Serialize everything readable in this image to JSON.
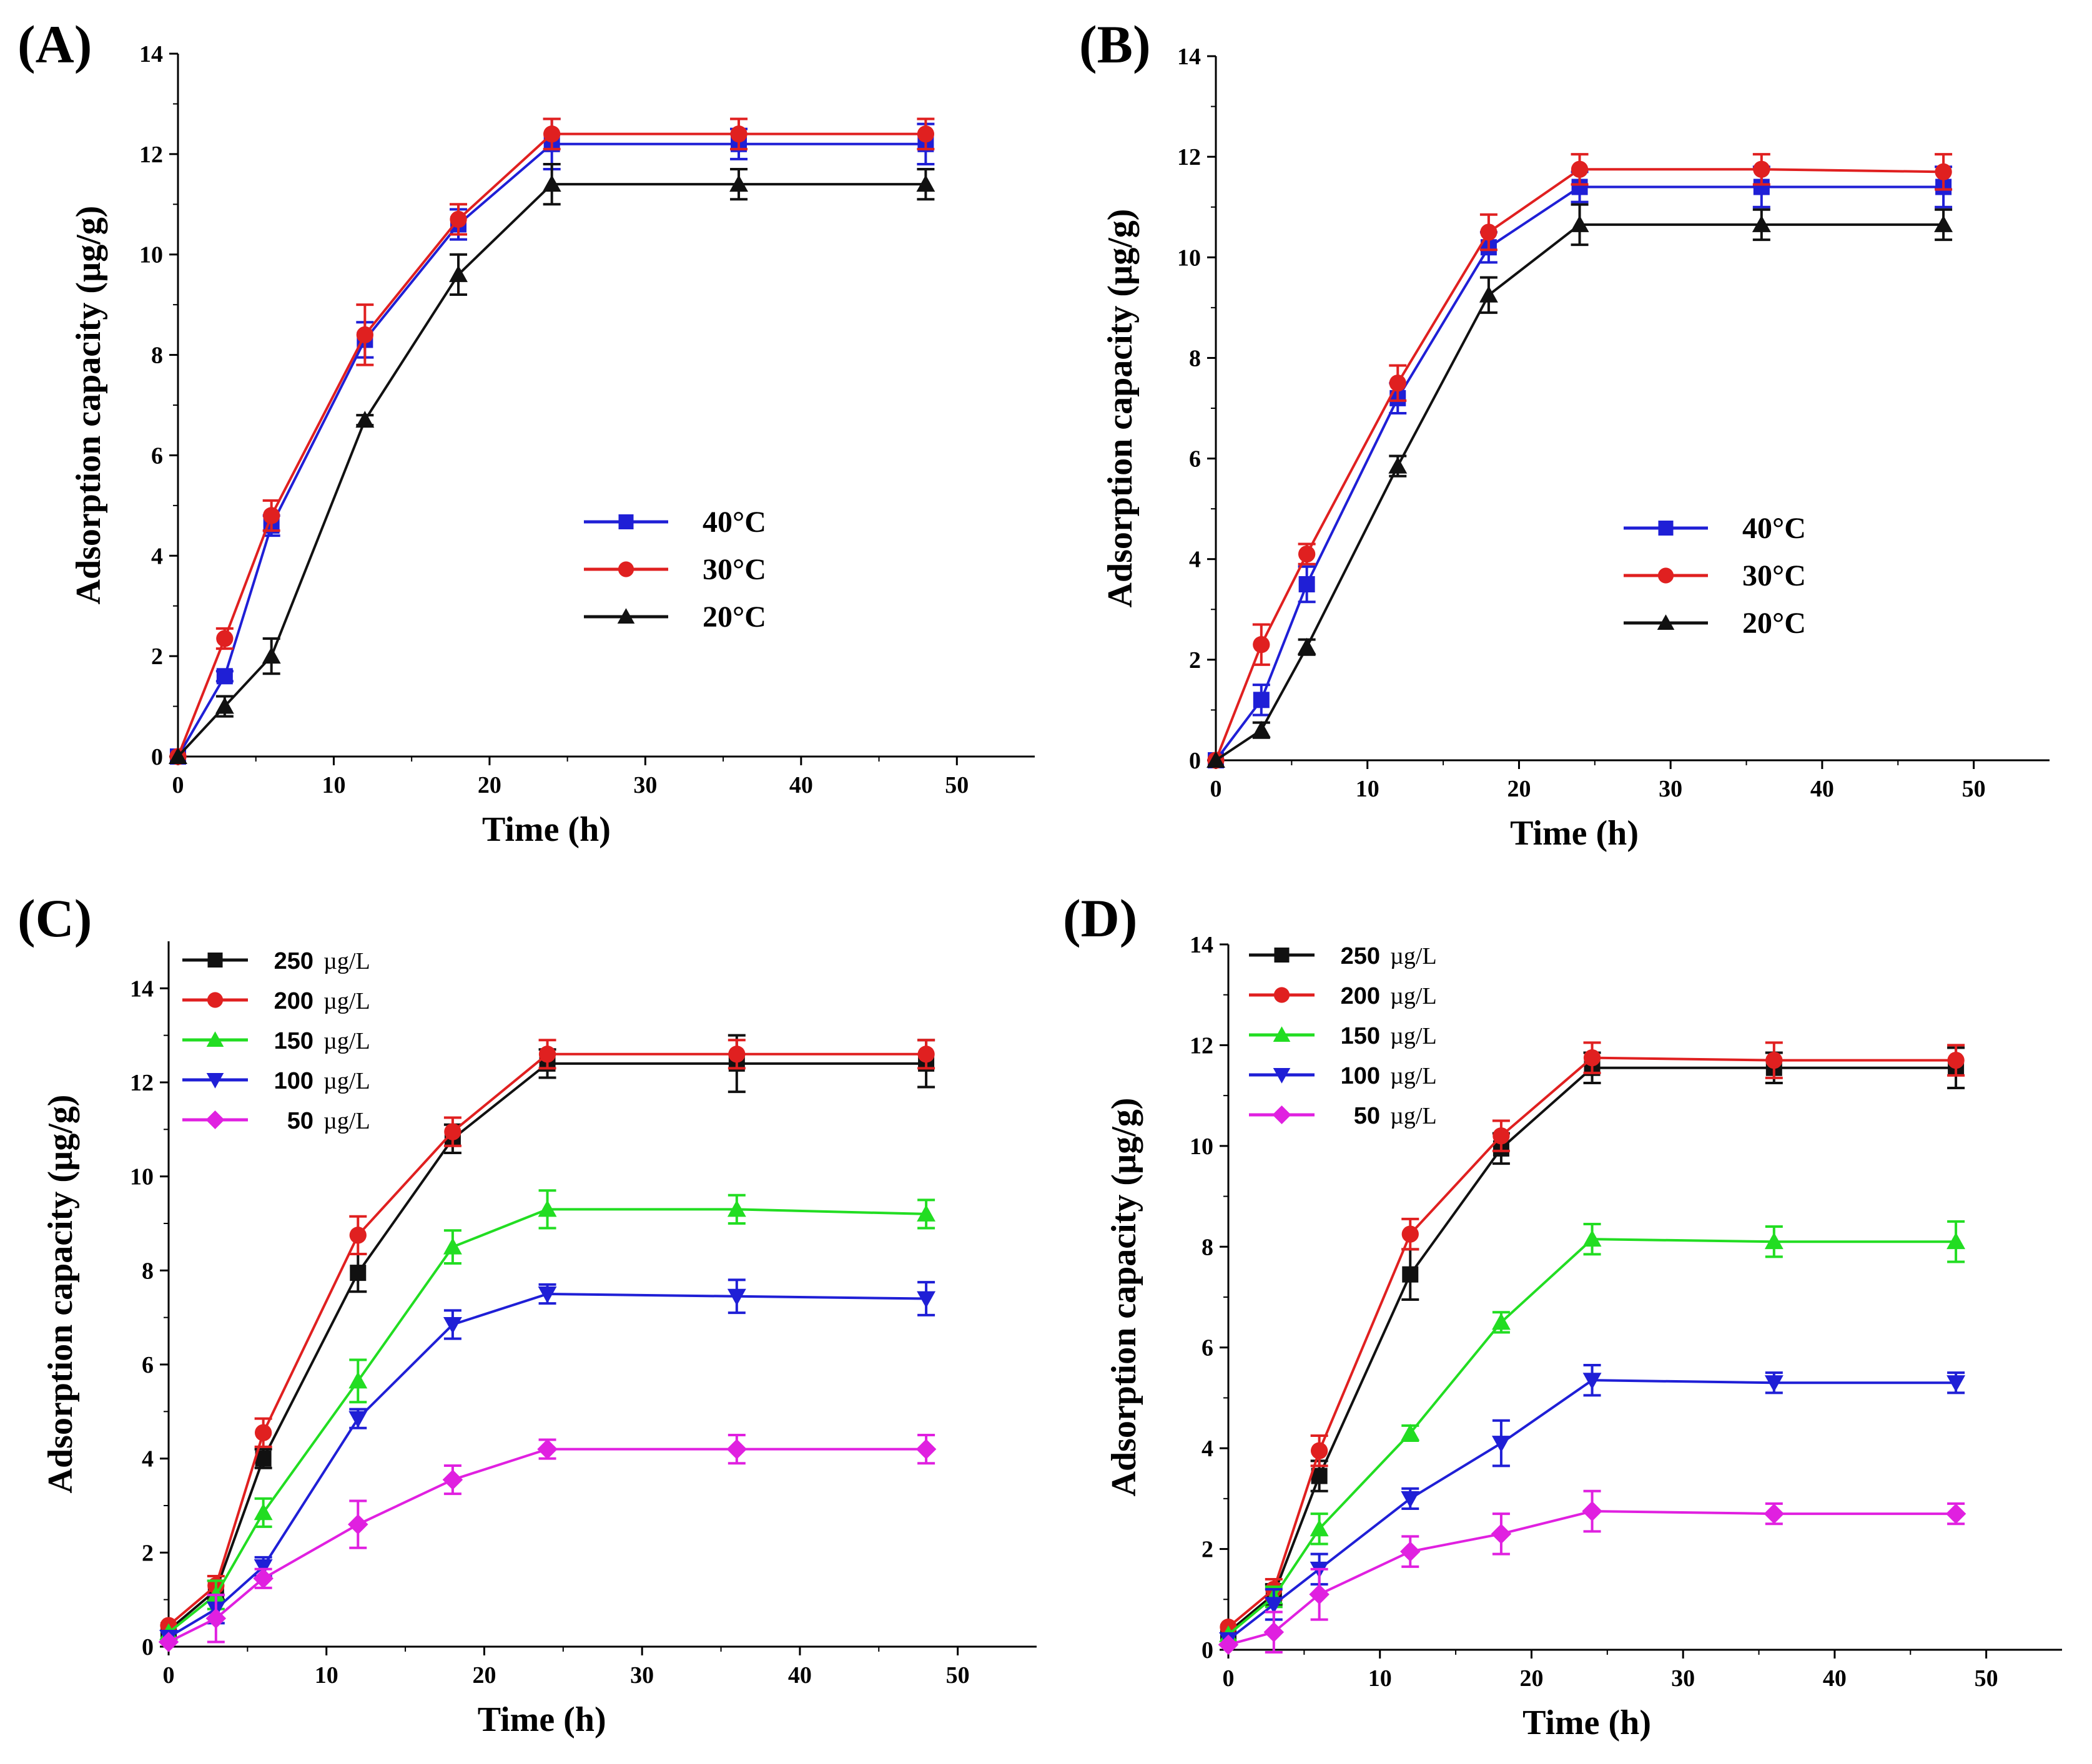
{
  "figure": {
    "panels": [
      {
        "id": "A",
        "label": "(A)"
      },
      {
        "id": "B",
        "label": "(B)"
      },
      {
        "id": "C",
        "label": "(C)"
      },
      {
        "id": "D",
        "label": "(D)"
      }
    ]
  },
  "chart_data": [
    {
      "panel": "(A)",
      "type": "line",
      "xlabel": "Time (h)",
      "ylabel": "Adsorption capacity (µg/g)",
      "xlim": [
        0,
        55
      ],
      "ylim": [
        0,
        14
      ],
      "xticks": [
        0,
        10,
        20,
        30,
        40,
        50
      ],
      "yticks": [
        0,
        2,
        4,
        6,
        8,
        10,
        12,
        14
      ],
      "legend_position": "center-right",
      "x": [
        0,
        3,
        6,
        12,
        18,
        24,
        36,
        48
      ],
      "series": [
        {
          "name": "40°C",
          "color": "#1f1fd6",
          "marker": "square",
          "values": [
            0,
            1.6,
            4.6,
            8.3,
            10.6,
            12.2,
            12.2,
            12.2
          ],
          "errors": [
            0,
            0.1,
            0.2,
            0.35,
            0.3,
            0.5,
            0.3,
            0.4
          ]
        },
        {
          "name": "30°C",
          "color": "#e02020",
          "marker": "circle",
          "values": [
            0,
            2.35,
            4.8,
            8.4,
            10.7,
            12.4,
            12.4,
            12.4
          ],
          "errors": [
            0,
            0.2,
            0.3,
            0.6,
            0.3,
            0.3,
            0.3,
            0.3
          ]
        },
        {
          "name": "20°C",
          "color": "#111111",
          "marker": "triangle",
          "values": [
            0,
            1.0,
            2.0,
            6.7,
            9.6,
            11.4,
            11.4,
            11.4
          ],
          "errors": [
            0,
            0.2,
            0.35,
            0.1,
            0.4,
            0.4,
            0.3,
            0.3
          ]
        }
      ]
    },
    {
      "panel": "(B)",
      "type": "line",
      "xlabel": "Time (h)",
      "ylabel": "Adsorption capacity (µg/g)",
      "xlim": [
        0,
        55
      ],
      "ylim": [
        0,
        14
      ],
      "xticks": [
        0,
        10,
        20,
        30,
        40,
        50
      ],
      "yticks": [
        0,
        2,
        4,
        6,
        8,
        10,
        12,
        14
      ],
      "legend_position": "center-right",
      "x": [
        0,
        3,
        6,
        12,
        18,
        24,
        36,
        48
      ],
      "series": [
        {
          "name": "40°C",
          "color": "#1f1fd6",
          "marker": "square",
          "values": [
            0,
            1.2,
            3.5,
            7.2,
            10.2,
            11.4,
            11.4,
            11.4
          ],
          "errors": [
            0,
            0.3,
            0.35,
            0.3,
            0.3,
            0.3,
            0.4,
            0.4
          ]
        },
        {
          "name": "30°C",
          "color": "#e02020",
          "marker": "circle",
          "values": [
            0,
            2.3,
            4.1,
            7.5,
            10.5,
            11.75,
            11.75,
            11.7
          ],
          "errors": [
            0,
            0.4,
            0.2,
            0.35,
            0.35,
            0.3,
            0.3,
            0.35
          ]
        },
        {
          "name": "20°C",
          "color": "#111111",
          "marker": "triangle",
          "values": [
            0,
            0.6,
            2.25,
            5.85,
            9.25,
            10.65,
            10.65,
            10.65
          ],
          "errors": [
            0,
            0.15,
            0.15,
            0.2,
            0.35,
            0.4,
            0.3,
            0.3
          ]
        }
      ]
    },
    {
      "panel": "(C)",
      "type": "line",
      "xlabel": "Time (h)",
      "ylabel": "Adsorption capacity (µg/g)",
      "xlim": [
        0,
        55
      ],
      "ylim": [
        0,
        15
      ],
      "xticks": [
        0,
        10,
        20,
        30,
        40,
        50
      ],
      "yticks": [
        0,
        2,
        4,
        6,
        8,
        10,
        12,
        14
      ],
      "legend_position": "top-left",
      "x": [
        0,
        3,
        6,
        12,
        18,
        24,
        36,
        48
      ],
      "series": [
        {
          "name_value": "250",
          "name_unit": "µg/L",
          "color": "#111111",
          "marker": "square",
          "values": [
            0.35,
            1.2,
            4.0,
            7.95,
            10.8,
            12.4,
            12.4,
            12.4
          ],
          "errors": [
            0,
            0.2,
            0.2,
            0.4,
            0.3,
            0.3,
            0.6,
            0.5
          ]
        },
        {
          "name_value": "200",
          "name_unit": "µg/L",
          "color": "#e02020",
          "marker": "circle",
          "values": [
            0.45,
            1.3,
            4.55,
            8.75,
            10.95,
            12.6,
            12.6,
            12.6
          ],
          "errors": [
            0,
            0.2,
            0.3,
            0.4,
            0.3,
            0.3,
            0.3,
            0.3
          ]
        },
        {
          "name_value": "150",
          "name_unit": "µg/L",
          "color": "#22dd22",
          "marker": "triangle",
          "values": [
            0.3,
            1.1,
            2.85,
            5.65,
            8.5,
            9.3,
            9.3,
            9.2
          ],
          "errors": [
            0,
            0.3,
            0.3,
            0.45,
            0.35,
            0.4,
            0.3,
            0.3
          ]
        },
        {
          "name_value": "100",
          "name_unit": "µg/L",
          "color": "#1f1fd6",
          "marker": "triangle-down",
          "values": [
            0.2,
            0.8,
            1.7,
            4.85,
            6.85,
            7.5,
            7.45,
            7.4
          ],
          "errors": [
            0,
            0.3,
            0.2,
            0.2,
            0.3,
            0.2,
            0.35,
            0.35
          ]
        },
        {
          "name_value": "50",
          "name_unit": "µg/L",
          "color": "#e020e0",
          "marker": "diamond",
          "values": [
            0.1,
            0.6,
            1.45,
            2.6,
            3.55,
            4.2,
            4.2,
            4.2
          ],
          "errors": [
            0,
            0.5,
            0.2,
            0.5,
            0.3,
            0.2,
            0.3,
            0.3
          ]
        }
      ]
    },
    {
      "panel": "(D)",
      "type": "line",
      "xlabel": "Time (h)",
      "ylabel": "Adsorption capacity (µg/g)",
      "xlim": [
        0,
        55
      ],
      "ylim": [
        0,
        14
      ],
      "xticks": [
        0,
        10,
        20,
        30,
        40,
        50
      ],
      "yticks": [
        0,
        2,
        4,
        6,
        8,
        10,
        12,
        14
      ],
      "legend_position": "top-left",
      "x": [
        0,
        3,
        6,
        12,
        18,
        24,
        36,
        48
      ],
      "series": [
        {
          "name_value": "250",
          "name_unit": "µg/L",
          "color": "#111111",
          "marker": "square",
          "values": [
            0.35,
            1.1,
            3.45,
            7.45,
            9.95,
            11.55,
            11.55,
            11.55
          ],
          "errors": [
            0,
            0.2,
            0.3,
            0.5,
            0.3,
            0.3,
            0.3,
            0.4
          ]
        },
        {
          "name_value": "200",
          "name_unit": "µg/L",
          "color": "#e02020",
          "marker": "circle",
          "values": [
            0.45,
            1.2,
            3.95,
            8.25,
            10.2,
            11.75,
            11.7,
            11.7
          ],
          "errors": [
            0,
            0.2,
            0.3,
            0.3,
            0.3,
            0.3,
            0.35,
            0.3
          ]
        },
        {
          "name_value": "150",
          "name_unit": "µg/L",
          "color": "#22dd22",
          "marker": "triangle",
          "values": [
            0.3,
            1.05,
            2.4,
            4.3,
            6.5,
            8.15,
            8.1,
            8.1
          ],
          "errors": [
            0,
            0.2,
            0.3,
            0.15,
            0.2,
            0.3,
            0.3,
            0.4
          ]
        },
        {
          "name_value": "100",
          "name_unit": "µg/L",
          "color": "#1f1fd6",
          "marker": "triangle-down",
          "values": [
            0.2,
            0.9,
            1.6,
            3.0,
            4.1,
            5.35,
            5.3,
            5.3
          ],
          "errors": [
            0,
            0.3,
            0.3,
            0.2,
            0.45,
            0.3,
            0.2,
            0.2
          ]
        },
        {
          "name_value": "50",
          "name_unit": "µg/L",
          "color": "#e020e0",
          "marker": "diamond",
          "values": [
            0.1,
            0.35,
            1.1,
            1.95,
            2.3,
            2.75,
            2.7,
            2.7
          ],
          "errors": [
            0,
            0.4,
            0.5,
            0.3,
            0.4,
            0.4,
            0.2,
            0.2
          ]
        }
      ]
    }
  ]
}
